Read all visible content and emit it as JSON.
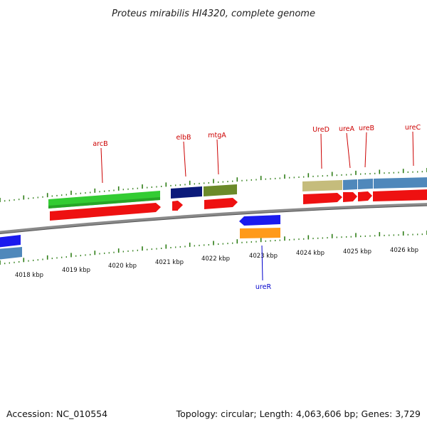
{
  "title": "Proteus mirabilis HI4320, complete genome",
  "footer": {
    "accession": "Accession: NC_010554",
    "summary": "Topology: circular; Length: 4,063,606 bp; Genes: 3,729"
  },
  "scale_labels": [
    "4018 kbp",
    "4019 kbp",
    "4020 kbp",
    "4021 kbp",
    "4022 kbp",
    "4023 kbp",
    "4024 kbp",
    "4025 kbp",
    "4026 kbp"
  ],
  "colors": {
    "label_forward": "#cc0000",
    "label_reverse": "#0000cc",
    "tick": "#2e7d16",
    "backbone": "#7a7a7a"
  },
  "genes": [
    {
      "name": "arcB",
      "strand": "forward"
    },
    {
      "name": "elbB",
      "strand": "forward"
    },
    {
      "name": "mtgA",
      "strand": "forward"
    },
    {
      "name": "UreD",
      "strand": "forward"
    },
    {
      "name": "ureA",
      "strand": "forward"
    },
    {
      "name": "ureB",
      "strand": "forward"
    },
    {
      "name": "ureC",
      "strand": "forward"
    },
    {
      "name": "ureR",
      "strand": "reverse"
    }
  ]
}
